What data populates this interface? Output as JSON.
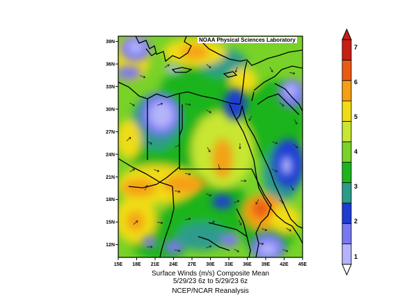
{
  "map": {
    "credit": "NOAA Physical Sciences Laboratory",
    "latitude_labels": [
      "39N",
      "36N",
      "33N",
      "30N",
      "27N",
      "24N",
      "21N",
      "18N",
      "15N",
      "12N"
    ],
    "longitude_labels": [
      "15E",
      "18E",
      "21E",
      "24E",
      "27E",
      "30E",
      "33E",
      "36E",
      "39E",
      "42E",
      "45E"
    ],
    "variable_line": "Surface Winds (m/s)    Composite Mean",
    "date_line": "5/29/23 6z  to 5/29/23 6z",
    "source_line": "NCEP/NCAR Reanalysis"
  },
  "colorbar": {
    "labels": [
      "1",
      "2",
      "3",
      "4",
      "5",
      "6",
      "7"
    ],
    "colors": [
      "#b4b4fa",
      "#7878f0",
      "#1e3cd2",
      "#2d9b8c",
      "#1eb41e",
      "#78d228",
      "#c8e632",
      "#f0dc14",
      "#f5a014",
      "#eb5a14",
      "#c81e14"
    ],
    "arrow_low": "#ffffff",
    "arrow_high": "#c81e14"
  }
}
